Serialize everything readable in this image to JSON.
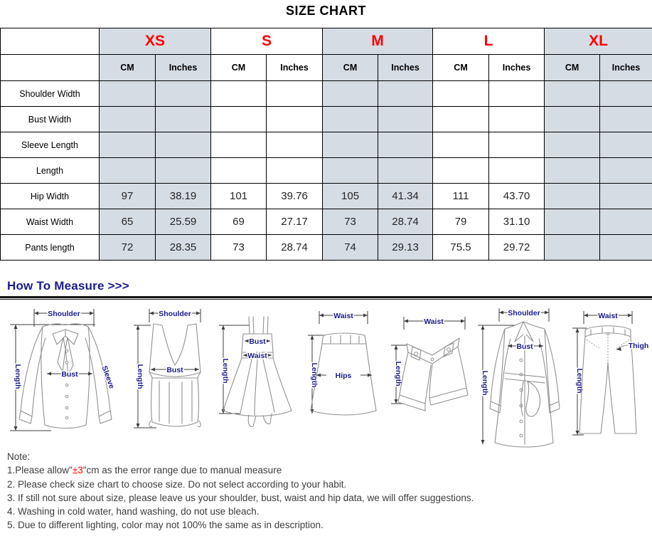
{
  "page": {
    "title": "SIZE CHART"
  },
  "colors": {
    "accent_red": "#ff0000",
    "shaded_cell": "#d6dce4",
    "heading_navy": "#1b1b8e"
  },
  "size_chart": {
    "sizes": [
      "XS",
      "S",
      "M",
      "L",
      "XL"
    ],
    "shaded_size_indexes": [
      0,
      2,
      4
    ],
    "units": [
      "CM",
      "Inches"
    ],
    "rows": [
      {
        "label": "Shoulder Width",
        "values": [
          "",
          "",
          "",
          "",
          "",
          "",
          "",
          "",
          "",
          ""
        ]
      },
      {
        "label": "Bust Width",
        "values": [
          "",
          "",
          "",
          "",
          "",
          "",
          "",
          "",
          "",
          ""
        ]
      },
      {
        "label": "Sleeve Length",
        "values": [
          "",
          "",
          "",
          "",
          "",
          "",
          "",
          "",
          "",
          ""
        ]
      },
      {
        "label": "Length",
        "values": [
          "",
          "",
          "",
          "",
          "",
          "",
          "",
          "",
          "",
          ""
        ]
      },
      {
        "label": "Hip Width",
        "values": [
          "97",
          "38.19",
          "101",
          "39.76",
          "105",
          "41.34",
          "111",
          "43.70",
          "",
          ""
        ]
      },
      {
        "label": "Waist Width",
        "values": [
          "65",
          "25.59",
          "69",
          "27.17",
          "73",
          "28.74",
          "79",
          "31.10",
          "",
          ""
        ]
      },
      {
        "label": "Pants length",
        "values": [
          "72",
          "28.35",
          "73",
          "28.74",
          "74",
          "29.13",
          "75.5",
          "29.72",
          "",
          ""
        ]
      }
    ]
  },
  "measure": {
    "heading": "How To Measure >>>",
    "figures": [
      {
        "name": "blouse",
        "labels": {
          "top": "Shoulder",
          "left": "Length",
          "mid": "Bust",
          "right": "Sleeve"
        }
      },
      {
        "name": "tank-top",
        "labels": {
          "top": "Shoulder",
          "left": "Length",
          "mid": "Bust"
        }
      },
      {
        "name": "dress",
        "labels": {
          "left": "Length",
          "mid": "Bust",
          "mid2": "Waist"
        }
      },
      {
        "name": "skirt",
        "labels": {
          "top": "Waist",
          "left": "Length",
          "mid": "Hips"
        }
      },
      {
        "name": "shorts",
        "labels": {
          "top": "Waist",
          "left": "Length"
        }
      },
      {
        "name": "coat",
        "labels": {
          "top": "Shoulder",
          "left": "Length",
          "mid": "Bust"
        }
      },
      {
        "name": "pants",
        "labels": {
          "top": "Waist",
          "left": "Length",
          "right": "Thigh"
        }
      }
    ]
  },
  "notes": {
    "heading": "Note:",
    "line1": {
      "prefix": "1.Please allow\"",
      "highlight": "±3",
      "suffix": "\"cm as the error range due to manual measure"
    },
    "items": [
      "2. Please check size chart to choose size. Do not select according to your habit.",
      "3. If still not sure about size, please leave us your shoulder, bust, waist and hip data, we will offer suggestions.",
      "4. Washing in cold water, hand washing, do not use bleach.",
      "5. Due to different lighting, color may not 100% the same as in description."
    ]
  }
}
